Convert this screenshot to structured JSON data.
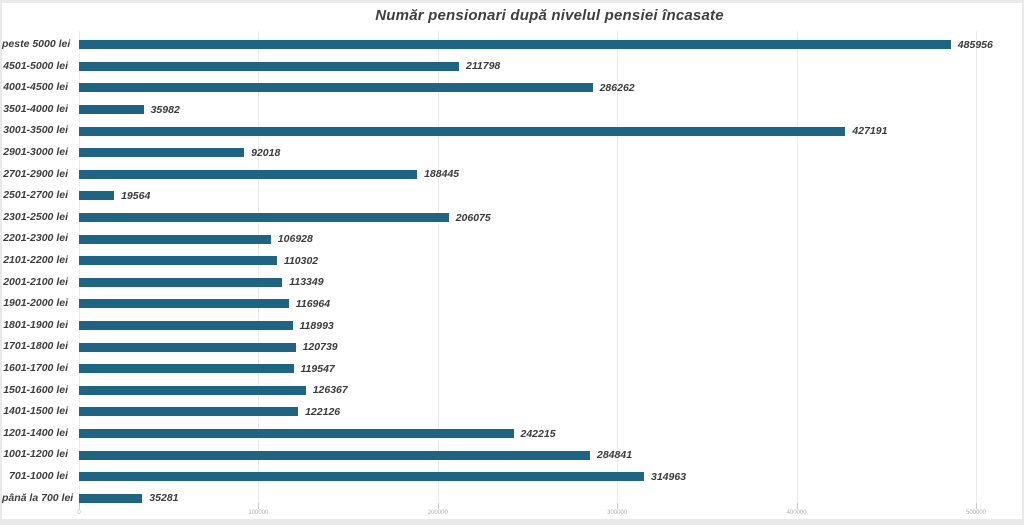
{
  "title": "Număr pensionari după nivelul pensiei încasate",
  "colors": {
    "bar": "#1f6483",
    "title_text": "#3f3f3f",
    "category_text": "#3d3d3d",
    "value_text": "#3a3a3a",
    "grid_line": "#ebebeb",
    "tick_mark": "#c8c8c8",
    "tick_text": "#b0b0b0",
    "frame_background": "#e9e9e9",
    "canvas_background": "#ffffff"
  },
  "chart_data": {
    "type": "bar",
    "orientation": "horizontal",
    "title": "Număr pensionari după nivelul pensiei încasate",
    "categories": [
      "peste 5000 lei",
      "4501-5000 lei",
      "4001-4500 lei",
      "3501-4000 lei",
      "3001-3500 lei",
      "2901-3000 lei",
      "2701-2900 lei",
      "2501-2700 lei",
      "2301-2500 lei",
      "2201-2300 lei",
      "2101-2200 lei",
      "2001-2100 lei",
      "1901-2000 lei",
      "1801-1900 lei",
      "1701-1800 lei",
      "1601-1700 lei",
      "1501-1600 lei",
      "1401-1500 lei",
      "1201-1400 lei",
      "1001-1200 lei",
      "701-1000 lei",
      "până la 700 lei"
    ],
    "values": [
      485956,
      211798,
      286262,
      35982,
      427191,
      92018,
      188445,
      19564,
      206075,
      106928,
      110302,
      113349,
      116964,
      118993,
      120739,
      119547,
      126367,
      122126,
      242215,
      284841,
      314963,
      35281
    ],
    "xlabel": "",
    "ylabel": "",
    "xlim": [
      0,
      500000
    ],
    "x_ticks": [
      0,
      100000,
      200000,
      300000,
      400000,
      500000
    ],
    "grid": true,
    "value_labels": true,
    "legend": false
  }
}
